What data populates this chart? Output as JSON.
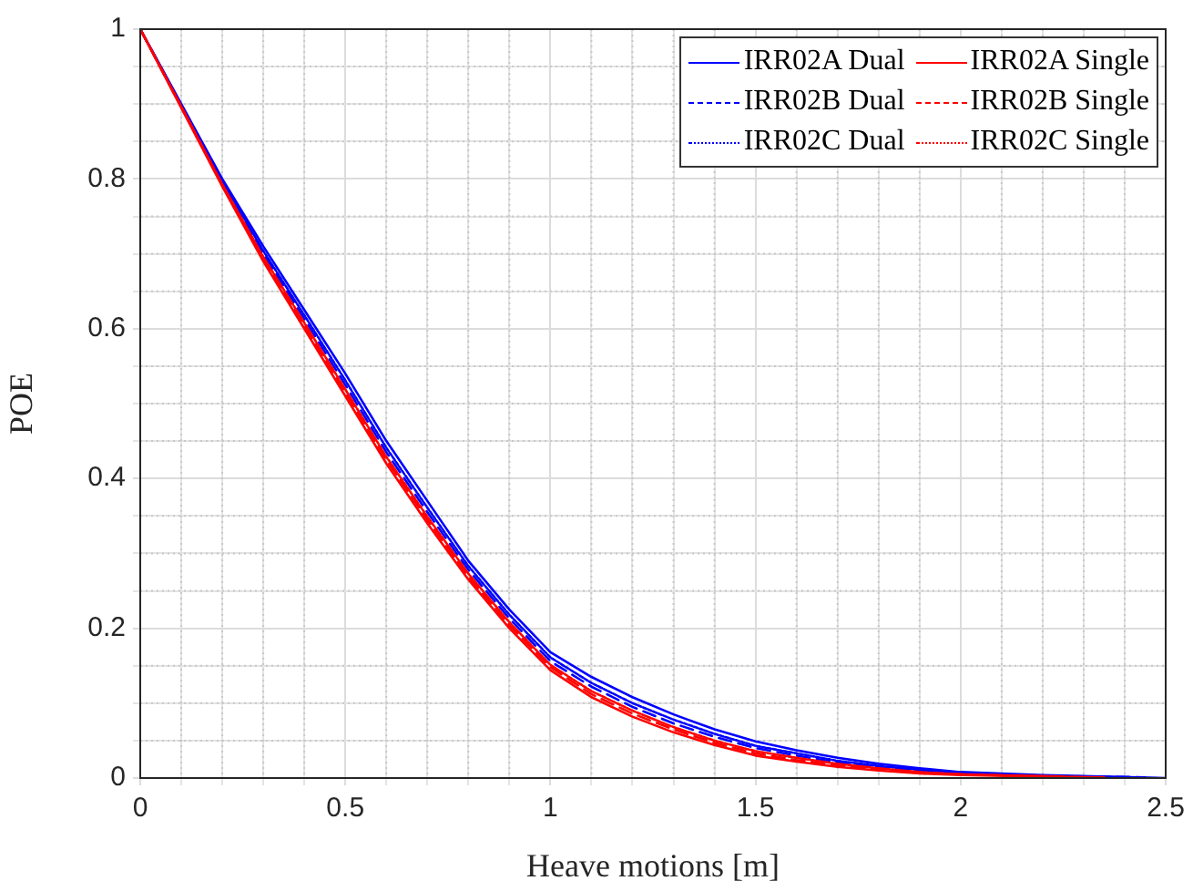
{
  "chart_data": {
    "type": "line",
    "xlabel": "Heave motions [m]",
    "ylabel": "POE",
    "series": [
      {
        "name": "IRR02A Dual",
        "color": "#0000ff",
        "line_style": "solid",
        "x": [
          0,
          0.1,
          0.2,
          0.3,
          0.4,
          0.5,
          0.6,
          0.7,
          0.8,
          0.9,
          1,
          1.1,
          1.2,
          1.3,
          1.4,
          1.5,
          1.6,
          1.7,
          1.8,
          1.9,
          2,
          2.2,
          2.5
        ],
        "values": [
          1,
          0.9,
          0.8,
          0.71,
          0.625,
          0.54,
          0.45,
          0.37,
          0.29,
          0.225,
          0.168,
          0.135,
          0.108,
          0.085,
          0.065,
          0.049,
          0.037,
          0.027,
          0.019,
          0.013,
          0.008,
          0.004,
          0
        ]
      },
      {
        "name": "IRR02B Dual",
        "color": "#0000ff",
        "line_style": "dashed",
        "x": [
          0,
          0.1,
          0.2,
          0.3,
          0.4,
          0.5,
          0.6,
          0.7,
          0.8,
          0.9,
          1,
          1.1,
          1.2,
          1.3,
          1.4,
          1.5,
          1.6,
          1.7,
          1.8,
          1.9,
          2,
          2.2,
          2.45
        ],
        "values": [
          1,
          0.898,
          0.795,
          0.7,
          0.613,
          0.525,
          0.435,
          0.355,
          0.278,
          0.213,
          0.156,
          0.122,
          0.095,
          0.073,
          0.055,
          0.04,
          0.03,
          0.021,
          0.015,
          0.01,
          0.006,
          0.003,
          0.001
        ]
      },
      {
        "name": "IRR02C Dual",
        "color": "#0000ff",
        "line_style": "dotted",
        "x": [
          0,
          0.1,
          0.2,
          0.3,
          0.4,
          0.5,
          0.6,
          0.7,
          0.8,
          0.9,
          1,
          1.1,
          1.2,
          1.3,
          1.4,
          1.5,
          1.6,
          1.7,
          1.8,
          1.9,
          2,
          2.2,
          2.4
        ],
        "values": [
          1,
          0.899,
          0.797,
          0.704,
          0.618,
          0.531,
          0.441,
          0.361,
          0.283,
          0.218,
          0.161,
          0.127,
          0.1,
          0.078,
          0.059,
          0.043,
          0.033,
          0.023,
          0.016,
          0.011,
          0.007,
          0.003,
          0.001
        ]
      },
      {
        "name": "IRR02A Single",
        "color": "#ff0000",
        "line_style": "solid",
        "x": [
          0,
          0.1,
          0.2,
          0.3,
          0.4,
          0.5,
          0.6,
          0.7,
          0.8,
          0.9,
          1,
          1.1,
          1.2,
          1.3,
          1.4,
          1.5,
          1.6,
          1.7,
          1.8,
          1.9,
          2,
          2.2,
          2.35
        ],
        "values": [
          1,
          0.895,
          0.79,
          0.69,
          0.6,
          0.51,
          0.42,
          0.34,
          0.265,
          0.2,
          0.144,
          0.108,
          0.082,
          0.061,
          0.044,
          0.03,
          0.022,
          0.015,
          0.01,
          0.006,
          0.004,
          0.002,
          0.001
        ]
      },
      {
        "name": "IRR02B Single",
        "color": "#ff0000",
        "line_style": "dashed",
        "x": [
          0,
          0.1,
          0.2,
          0.3,
          0.4,
          0.5,
          0.6,
          0.7,
          0.8,
          0.9,
          1,
          1.1,
          1.2,
          1.3,
          1.4,
          1.5,
          1.6,
          1.7,
          1.8,
          1.9,
          2,
          2.2,
          2.3
        ],
        "values": [
          1,
          0.896,
          0.792,
          0.693,
          0.604,
          0.515,
          0.425,
          0.345,
          0.269,
          0.204,
          0.148,
          0.112,
          0.086,
          0.065,
          0.047,
          0.033,
          0.024,
          0.017,
          0.011,
          0.007,
          0.005,
          0.002,
          0.001
        ]
      },
      {
        "name": "IRR02C Single",
        "color": "#ff0000",
        "line_style": "dotted",
        "x": [
          0,
          0.1,
          0.2,
          0.3,
          0.4,
          0.5,
          0.6,
          0.7,
          0.8,
          0.9,
          1,
          1.1,
          1.2,
          1.3,
          1.4,
          1.5,
          1.6,
          1.7,
          1.8,
          1.9,
          2,
          2.25
        ],
        "values": [
          1,
          0.897,
          0.793,
          0.696,
          0.608,
          0.519,
          0.429,
          0.349,
          0.273,
          0.208,
          0.151,
          0.116,
          0.09,
          0.068,
          0.05,
          0.036,
          0.027,
          0.019,
          0.013,
          0.008,
          0.005,
          0.002
        ]
      }
    ],
    "xlim": [
      0,
      2.5
    ],
    "xticks": [
      0,
      {
        "value": 0.1,
        "label": null
      },
      {
        "value": 0.2,
        "label": null
      },
      {
        "value": 0.3,
        "label": null
      },
      {
        "value": 0.4,
        "label": null
      },
      0.5,
      {
        "value": 0.6,
        "label": null
      },
      {
        "value": 0.7,
        "label": null
      },
      {
        "value": 0.8,
        "label": null
      },
      {
        "value": 0.9,
        "label": null
      },
      1,
      {
        "value": 1.1,
        "label": null
      },
      {
        "value": 1.2,
        "label": null
      },
      {
        "value": 1.3,
        "label": null
      },
      {
        "value": 1.4,
        "label": null
      },
      1.5,
      {
        "value": 1.6,
        "label": null
      },
      {
        "value": 1.7,
        "label": null
      },
      {
        "value": 1.8,
        "label": null
      },
      {
        "value": 1.9,
        "label": null
      },
      2,
      {
        "value": 2.1,
        "label": null
      },
      {
        "value": 2.2,
        "label": null
      },
      {
        "value": 2.3,
        "label": null
      },
      {
        "value": 2.4,
        "label": null
      },
      2.5
    ],
    "ylim": [
      0,
      1
    ],
    "yticks": [
      0,
      {
        "value": 0.05,
        "label": null
      },
      {
        "value": 0.1,
        "label": null
      },
      {
        "value": 0.15,
        "label": null
      },
      0.2,
      {
        "value": 0.25,
        "label": null
      },
      {
        "value": 0.3,
        "label": null
      },
      {
        "value": 0.35,
        "label": null
      },
      0.4,
      {
        "value": 0.45,
        "label": null
      },
      {
        "value": 0.5,
        "label": null
      },
      {
        "value": 0.55,
        "label": null
      },
      0.6,
      {
        "value": 0.65,
        "label": null
      },
      {
        "value": 0.7,
        "label": null
      },
      {
        "value": 0.75,
        "label": null
      },
      0.8,
      {
        "value": 0.85,
        "label": null
      },
      {
        "value": 0.9,
        "label": null
      },
      {
        "value": 0.95,
        "label": null
      },
      1
    ],
    "grid": true,
    "legend": "top right",
    "marker": "none"
  }
}
